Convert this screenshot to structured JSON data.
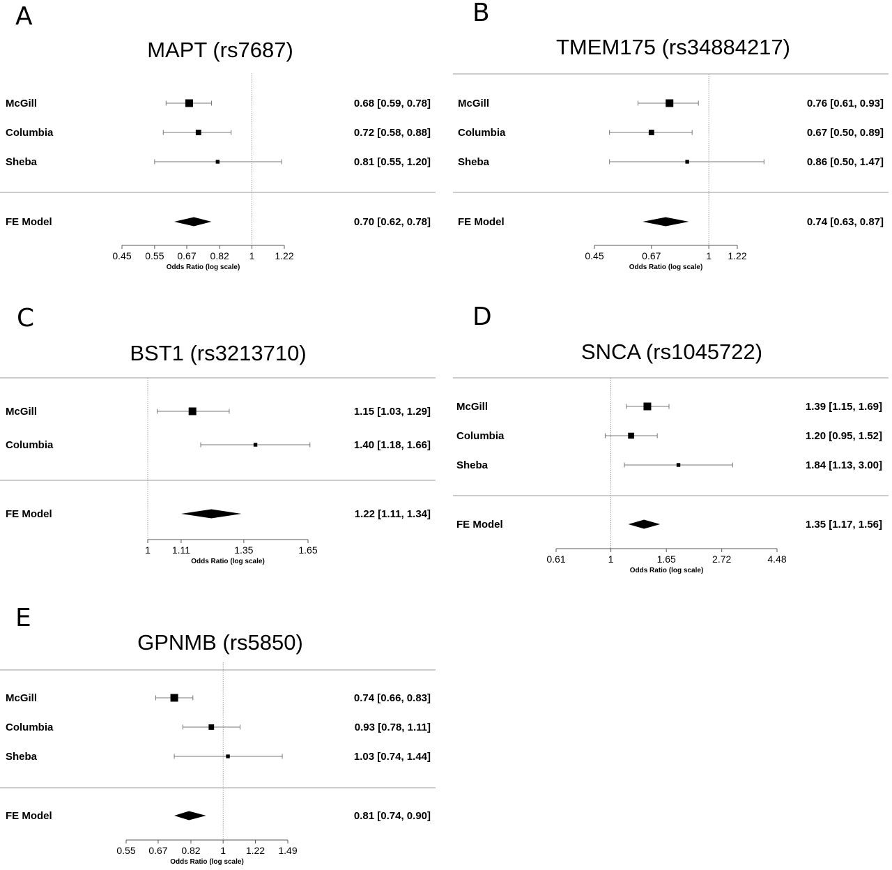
{
  "chart_data": [
    {
      "panel": "A",
      "type": "forest",
      "title": "MAPT (rs7687)",
      "xlabel": "Odds Ratio (log scale)",
      "xscale": "log",
      "xlim": [
        0.45,
        1.22
      ],
      "xticks": [
        "0.45",
        "0.55",
        "0.67",
        "0.82",
        "1",
        "1.22"
      ],
      "reference_line": 1,
      "studies": [
        {
          "name": "McGill",
          "or": 0.68,
          "lo": 0.59,
          "hi": 0.78,
          "label": "0.68 [0.59, 0.78]",
          "weight": 1.0
        },
        {
          "name": "Columbia",
          "or": 0.72,
          "lo": 0.58,
          "hi": 0.88,
          "label": "0.72 [0.58, 0.88]",
          "weight": 0.6
        },
        {
          "name": "Sheba",
          "or": 0.81,
          "lo": 0.55,
          "hi": 1.2,
          "label": "0.81 [0.55, 1.20]",
          "weight": 0.3
        }
      ],
      "summary": {
        "name": "FE Model",
        "or": 0.7,
        "lo": 0.62,
        "hi": 0.78,
        "label": "0.70 [0.62, 0.78]"
      }
    },
    {
      "panel": "B",
      "type": "forest",
      "title": "TMEM175 (rs34884217)",
      "xlabel": "Odds Ratio (log scale)",
      "xscale": "log",
      "xlim": [
        0.45,
        1.22
      ],
      "xticks": [
        "0.45",
        "0.67",
        "1",
        "1.22"
      ],
      "reference_line": 1,
      "studies": [
        {
          "name": "McGill",
          "or": 0.76,
          "lo": 0.61,
          "hi": 0.93,
          "label": "0.76 [0.61, 0.93]",
          "weight": 1.0
        },
        {
          "name": "Columbia",
          "or": 0.67,
          "lo": 0.5,
          "hi": 0.89,
          "label": "0.67 [0.50, 0.89]",
          "weight": 0.6
        },
        {
          "name": "Sheba",
          "or": 0.86,
          "lo": 0.5,
          "hi": 1.47,
          "label": "0.86 [0.50, 1.47]",
          "weight": 0.3
        }
      ],
      "summary": {
        "name": "FE Model",
        "or": 0.74,
        "lo": 0.63,
        "hi": 0.87,
        "label": "0.74 [0.63, 0.87]"
      }
    },
    {
      "panel": "C",
      "type": "forest",
      "title": "BST1 (rs3213710)",
      "xlabel": "Odds Ratio (log scale)",
      "xscale": "log",
      "xlim": [
        1,
        1.65
      ],
      "xticks": [
        "1",
        "1.11",
        "1.35",
        "1.65"
      ],
      "reference_line": 1,
      "studies": [
        {
          "name": "McGill",
          "or": 1.15,
          "lo": 1.03,
          "hi": 1.29,
          "label": "1.15 [1.03, 1.29]",
          "weight": 1.0
        },
        {
          "name": "Columbia",
          "or": 1.4,
          "lo": 1.18,
          "hi": 1.66,
          "label": "1.40 [1.18, 1.66]",
          "weight": 0.3
        }
      ],
      "summary": {
        "name": "FE Model",
        "or": 1.22,
        "lo": 1.11,
        "hi": 1.34,
        "label": "1.22 [1.11, 1.34]"
      }
    },
    {
      "panel": "D",
      "type": "forest",
      "title": "SNCA (rs1045722)",
      "xlabel": "Odds Ratio (log scale)",
      "xscale": "log",
      "xlim": [
        0.61,
        4.48
      ],
      "xticks": [
        "0.61",
        "1",
        "1.65",
        "2.72",
        "4.48"
      ],
      "reference_line": 1,
      "studies": [
        {
          "name": "McGill",
          "or": 1.39,
          "lo": 1.15,
          "hi": 1.69,
          "label": "1.39 [1.15, 1.69]",
          "weight": 1.0
        },
        {
          "name": "Columbia",
          "or": 1.2,
          "lo": 0.95,
          "hi": 1.52,
          "label": "1.20 [0.95, 1.52]",
          "weight": 0.7
        },
        {
          "name": "Sheba",
          "or": 1.84,
          "lo": 1.13,
          "hi": 3.0,
          "label": "1.84 [1.13, 3.00]",
          "weight": 0.3
        }
      ],
      "summary": {
        "name": "FE Model",
        "or": 1.35,
        "lo": 1.17,
        "hi": 1.56,
        "label": "1.35 [1.17, 1.56]"
      }
    },
    {
      "panel": "E",
      "type": "forest",
      "title": "GPNMB (rs5850)",
      "xlabel": "Odds Ratio (log scale)",
      "xscale": "log",
      "xlim": [
        0.55,
        1.49
      ],
      "xticks": [
        "0.55",
        "0.67",
        "0.82",
        "1",
        "1.22",
        "1.49"
      ],
      "reference_line": 1,
      "studies": [
        {
          "name": "McGill",
          "or": 0.74,
          "lo": 0.66,
          "hi": 0.83,
          "label": "0.74 [0.66, 0.83]",
          "weight": 1.0
        },
        {
          "name": "Columbia",
          "or": 0.93,
          "lo": 0.78,
          "hi": 1.11,
          "label": "0.93 [0.78, 1.11]",
          "weight": 0.6
        },
        {
          "name": "Sheba",
          "or": 1.03,
          "lo": 0.74,
          "hi": 1.44,
          "label": "1.03 [0.74, 1.44]",
          "weight": 0.3
        }
      ],
      "summary": {
        "name": "FE Model",
        "or": 0.81,
        "lo": 0.74,
        "hi": 0.9,
        "label": "0.81 [0.74, 0.90]"
      }
    }
  ]
}
